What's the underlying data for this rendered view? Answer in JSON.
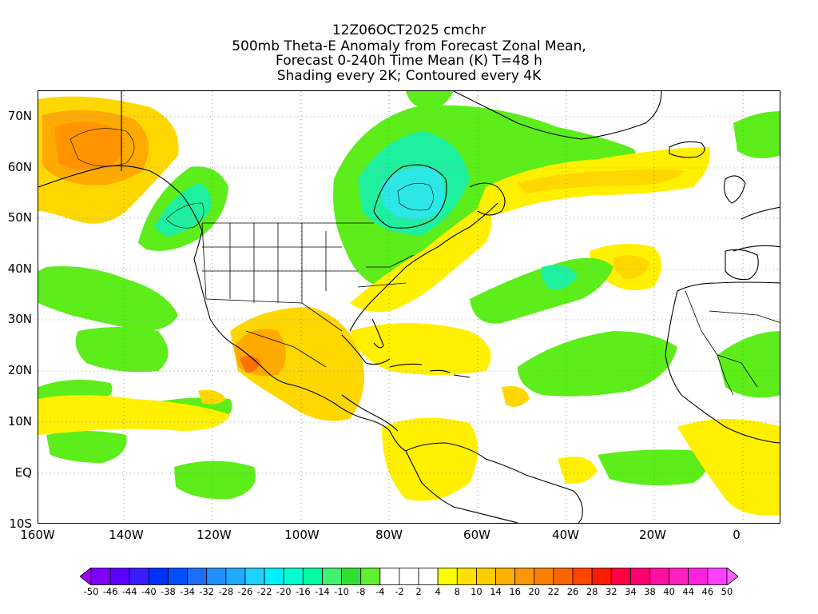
{
  "titles": {
    "line1": "12Z06OCT2025 cmchr",
    "line2": "500mb Theta-E Anomaly from Forecast Zonal Mean,",
    "line3": "Forecast 0-240h Time Mean (K) T=48 h",
    "line4": "Shading every 2K; Contoured every 4K"
  },
  "latitude_labels": [
    "70N",
    "60N",
    "50N",
    "40N",
    "30N",
    "20N",
    "10N",
    "EQ",
    "10S"
  ],
  "longitude_labels": [
    "160W",
    "140W",
    "120W",
    "100W",
    "80W",
    "60W",
    "40W",
    "20W",
    "0"
  ],
  "colorbar": {
    "labels": [
      "-50",
      "-46",
      "-44",
      "-40",
      "-38",
      "-34",
      "-32",
      "-28",
      "-26",
      "-22",
      "-20",
      "-16",
      "-14",
      "-10",
      "-8",
      "-4",
      "-2",
      "2",
      "4",
      "8",
      "10",
      "14",
      "16",
      "20",
      "22",
      "26",
      "28",
      "32",
      "34",
      "38",
      "40",
      "44",
      "46",
      "50"
    ],
    "colors": [
      "#a000ff",
      "#8000ff",
      "#5a00ff",
      "#3c1cff",
      "#0032ff",
      "#0050ff",
      "#1a6eff",
      "#2090ff",
      "#20aaff",
      "#20d0ff",
      "#00f0ff",
      "#00ffd0",
      "#00ffa0",
      "#40f070",
      "#30e030",
      "#60ee30",
      "#ffffff",
      "#ffffff",
      "#ffffff",
      "#ffff00",
      "#ffe000",
      "#ffcc00",
      "#ffb000",
      "#ff9800",
      "#ff8000",
      "#ff6400",
      "#ff4400",
      "#ff1c00",
      "#ff0040",
      "#ff0070",
      "#ff10a0",
      "#ff20c0",
      "#ff20e0",
      "#ff40ff",
      "#ff60ff"
    ]
  },
  "shading_colors": {
    "green": "#5ced1a",
    "teal": "#1ef0a0",
    "cyan": "#2de6e6",
    "yellow": "#fff000",
    "gold": "#ffd700",
    "orange": "#ffaa00",
    "red_orange": "#ff7000"
  }
}
